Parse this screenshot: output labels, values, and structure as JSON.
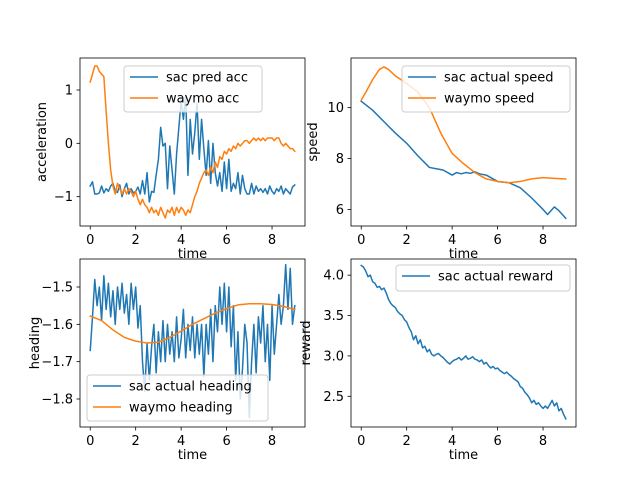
{
  "figure": {
    "colors": {
      "blue": "#1f77b4",
      "orange": "#ff7f0e"
    }
  },
  "chart_data": [
    {
      "type": "line",
      "xlabel": "time",
      "ylabel": "acceleration",
      "xlim": [
        -0.45,
        9.45
      ],
      "ylim": [
        -1.55,
        1.6
      ],
      "xticks": [
        0,
        2,
        4,
        6,
        8
      ],
      "yticks": [
        -1,
        0,
        1
      ],
      "legend": "upper center",
      "grid": false,
      "series": [
        {
          "name": "sac pred acc",
          "color": "#1f77b4",
          "x": [
            0,
            0.1,
            0.2,
            0.3,
            0.4,
            0.5,
            0.6,
            0.7,
            0.8,
            0.9,
            1.0,
            1.1,
            1.2,
            1.3,
            1.4,
            1.5,
            1.6,
            1.7,
            1.8,
            1.9,
            2.0,
            2.1,
            2.2,
            2.3,
            2.4,
            2.5,
            2.6,
            2.7,
            2.8,
            2.9,
            3.0,
            3.1,
            3.2,
            3.3,
            3.4,
            3.5,
            3.6,
            3.7,
            3.8,
            3.9,
            4.0,
            4.1,
            4.2,
            4.3,
            4.4,
            4.5,
            4.6,
            4.7,
            4.8,
            4.9,
            5.0,
            5.1,
            5.2,
            5.3,
            5.4,
            5.5,
            5.6,
            5.7,
            5.8,
            5.9,
            6.0,
            6.1,
            6.2,
            6.3,
            6.4,
            6.5,
            6.6,
            6.7,
            6.8,
            6.9,
            7.0,
            7.1,
            7.2,
            7.3,
            7.4,
            7.5,
            7.6,
            7.7,
            7.8,
            7.9,
            8.0,
            8.1,
            8.2,
            8.3,
            8.4,
            8.5,
            8.6,
            8.7,
            8.8,
            8.9,
            9.0
          ],
          "y": [
            -0.8,
            -0.72,
            -0.95,
            -0.95,
            -0.93,
            -0.8,
            -0.93,
            -0.85,
            -0.9,
            -0.8,
            -0.75,
            -0.9,
            -0.92,
            -0.78,
            -1.0,
            -0.85,
            -0.75,
            -0.95,
            -0.85,
            -0.93,
            -0.9,
            -0.82,
            -0.95,
            -0.7,
            -0.95,
            -0.55,
            -1.1,
            -0.9,
            -0.92,
            -0.6,
            -0.3,
            0.3,
            -0.05,
            0.0,
            -0.85,
            -0.05,
            -0.5,
            -0.95,
            -0.2,
            0.3,
            0.8,
            0.45,
            0.9,
            -0.6,
            0.45,
            -0.2,
            0.2,
            0.75,
            -0.3,
            0.45,
            -0.1,
            -0.6,
            0.05,
            -0.75,
            0.0,
            -0.55,
            -0.8,
            -0.55,
            -0.9,
            -0.35,
            -0.85,
            -0.3,
            -0.9,
            -0.75,
            -0.85,
            -0.55,
            -0.95,
            -0.6,
            -0.85,
            -0.95,
            -0.95,
            -0.75,
            -0.95,
            -0.8,
            -0.9,
            -0.85,
            -0.92,
            -0.85,
            -0.95,
            -0.8,
            -0.9,
            -0.95,
            -0.85,
            -0.9,
            -0.8,
            -0.95,
            -0.85,
            -0.9,
            -0.95,
            -0.82,
            -0.78
          ]
        },
        {
          "name": "waymo acc",
          "color": "#ff7f0e",
          "x": [
            0,
            0.1,
            0.2,
            0.3,
            0.4,
            0.5,
            0.6,
            0.7,
            0.8,
            0.9,
            1.0,
            1.1,
            1.2,
            1.3,
            1.4,
            1.5,
            1.6,
            1.7,
            1.8,
            1.9,
            2.0,
            2.1,
            2.2,
            2.3,
            2.4,
            2.5,
            2.6,
            2.7,
            2.8,
            2.9,
            3.0,
            3.1,
            3.2,
            3.3,
            3.4,
            3.5,
            3.6,
            3.7,
            3.8,
            3.9,
            4.0,
            4.1,
            4.2,
            4.3,
            4.4,
            4.5,
            4.6,
            4.7,
            4.8,
            4.9,
            5.0,
            5.1,
            5.2,
            5.3,
            5.4,
            5.5,
            5.6,
            5.7,
            5.8,
            5.9,
            6.0,
            6.1,
            6.2,
            6.3,
            6.4,
            6.5,
            6.6,
            6.7,
            6.8,
            6.9,
            7.0,
            7.1,
            7.2,
            7.3,
            7.4,
            7.5,
            7.6,
            7.7,
            7.8,
            7.9,
            8.0,
            8.1,
            8.2,
            8.3,
            8.4,
            8.5,
            8.6,
            8.7,
            8.8,
            8.9,
            9.0
          ],
          "y": [
            1.15,
            1.3,
            1.45,
            1.45,
            1.35,
            1.3,
            1.25,
            0.6,
            0.0,
            -0.5,
            -0.8,
            -0.95,
            -0.75,
            -0.85,
            -0.95,
            -0.85,
            -0.95,
            -0.85,
            -0.9,
            -1.0,
            -0.9,
            -1.05,
            -1.15,
            -1.05,
            -1.15,
            -1.2,
            -1.3,
            -1.2,
            -1.3,
            -1.25,
            -1.35,
            -1.2,
            -1.3,
            -1.4,
            -1.25,
            -1.3,
            -1.2,
            -1.35,
            -1.2,
            -1.3,
            -1.2,
            -1.25,
            -1.35,
            -1.25,
            -1.3,
            -1.15,
            -1.0,
            -0.9,
            -0.75,
            -0.65,
            -0.55,
            -0.5,
            -0.6,
            -0.45,
            -0.55,
            -0.35,
            -0.45,
            -0.25,
            -0.3,
            -0.15,
            -0.2,
            -0.1,
            -0.15,
            -0.05,
            -0.1,
            0.0,
            -0.05,
            0.0,
            0.05,
            0.05,
            0.0,
            0.05,
            0.1,
            0.05,
            0.1,
            0.05,
            0.1,
            0.05,
            0.1,
            0.1,
            0.1,
            0.05,
            0.1,
            0.1,
            0.0,
            -0.05,
            0.0,
            -0.05,
            -0.1,
            -0.1,
            -0.15
          ]
        }
      ]
    },
    {
      "type": "line",
      "xlabel": "time",
      "ylabel": "speed",
      "xlim": [
        -0.45,
        9.45
      ],
      "ylim": [
        5.35,
        11.95
      ],
      "xticks": [
        0,
        2,
        4,
        6,
        8
      ],
      "yticks": [
        6,
        8,
        10
      ],
      "legend": "upper right",
      "grid": false,
      "series": [
        {
          "name": "sac actual speed",
          "color": "#1f77b4",
          "x": [
            0,
            0.5,
            1.0,
            1.5,
            2.0,
            2.5,
            3.0,
            3.3,
            3.6,
            3.9,
            4.0,
            4.2,
            4.4,
            4.6,
            4.8,
            5.0,
            5.2,
            5.5,
            6.0,
            6.5,
            7.0,
            7.5,
            8.0,
            8.2,
            8.5,
            8.7,
            9.0
          ],
          "y": [
            10.25,
            9.9,
            9.45,
            9.0,
            8.6,
            8.1,
            7.65,
            7.6,
            7.55,
            7.4,
            7.35,
            7.45,
            7.4,
            7.45,
            7.42,
            7.48,
            7.4,
            7.35,
            7.1,
            7.05,
            6.85,
            6.45,
            6.0,
            5.8,
            6.1,
            5.95,
            5.65
          ]
        },
        {
          "name": "waymo speed",
          "color": "#ff7f0e",
          "x": [
            0,
            0.2,
            0.5,
            0.8,
            1.0,
            1.2,
            1.5,
            2.0,
            2.5,
            3.0,
            3.5,
            4.0,
            4.5,
            5.0,
            5.5,
            6.0,
            6.5,
            7.0,
            7.5,
            8.0,
            8.5,
            9.0
          ],
          "y": [
            10.3,
            10.6,
            11.1,
            11.5,
            11.6,
            11.5,
            11.25,
            10.95,
            10.6,
            10.0,
            9.0,
            8.2,
            7.8,
            7.45,
            7.2,
            7.1,
            7.05,
            7.1,
            7.2,
            7.25,
            7.22,
            7.2
          ]
        }
      ]
    },
    {
      "type": "line",
      "xlabel": "time",
      "ylabel": "heading",
      "xlim": [
        -0.45,
        9.45
      ],
      "ylim": [
        -1.875,
        -1.425
      ],
      "xticks": [
        0,
        2,
        4,
        6,
        8
      ],
      "yticks": [
        -1.8,
        -1.7,
        -1.6,
        -1.5
      ],
      "legend": "lower left",
      "grid": false,
      "series": [
        {
          "name": "sac actual heading",
          "color": "#1f77b4",
          "x": [
            0,
            0.1,
            0.2,
            0.3,
            0.4,
            0.5,
            0.6,
            0.7,
            0.8,
            0.9,
            1.0,
            1.1,
            1.2,
            1.3,
            1.4,
            1.5,
            1.6,
            1.7,
            1.8,
            1.9,
            2.0,
            2.1,
            2.2,
            2.3,
            2.4,
            2.5,
            2.6,
            2.7,
            2.8,
            2.9,
            3.0,
            3.1,
            3.2,
            3.3,
            3.4,
            3.5,
            3.6,
            3.7,
            3.8,
            3.9,
            4.0,
            4.1,
            4.2,
            4.3,
            4.4,
            4.5,
            4.6,
            4.7,
            4.8,
            4.9,
            5.0,
            5.1,
            5.2,
            5.3,
            5.4,
            5.5,
            5.6,
            5.7,
            5.8,
            5.9,
            6.0,
            6.1,
            6.2,
            6.3,
            6.4,
            6.5,
            6.6,
            6.7,
            6.8,
            6.9,
            7.0,
            7.1,
            7.2,
            7.3,
            7.4,
            7.5,
            7.6,
            7.7,
            7.8,
            7.9,
            8.0,
            8.1,
            8.2,
            8.3,
            8.4,
            8.5,
            8.6,
            8.7,
            8.8,
            8.9,
            9.0
          ],
          "y": [
            -1.67,
            -1.58,
            -1.48,
            -1.55,
            -1.5,
            -1.59,
            -1.47,
            -1.56,
            -1.49,
            -1.58,
            -1.51,
            -1.6,
            -1.5,
            -1.56,
            -1.49,
            -1.57,
            -1.52,
            -1.6,
            -1.49,
            -1.56,
            -1.5,
            -1.61,
            -1.55,
            -1.7,
            -1.78,
            -1.65,
            -1.75,
            -1.66,
            -1.6,
            -1.73,
            -1.62,
            -1.7,
            -1.59,
            -1.7,
            -1.6,
            -1.68,
            -1.62,
            -1.7,
            -1.58,
            -1.69,
            -1.64,
            -1.56,
            -1.69,
            -1.6,
            -1.67,
            -1.58,
            -1.69,
            -1.6,
            -1.68,
            -1.6,
            -1.74,
            -1.6,
            -1.68,
            -1.56,
            -1.7,
            -1.55,
            -1.62,
            -1.5,
            -1.6,
            -1.49,
            -1.62,
            -1.5,
            -1.66,
            -1.55,
            -1.75,
            -1.62,
            -1.8,
            -1.72,
            -1.6,
            -1.65,
            -1.85,
            -1.7,
            -1.6,
            -1.73,
            -1.58,
            -1.65,
            -1.55,
            -1.7,
            -1.6,
            -1.75,
            -1.55,
            -1.68,
            -1.6,
            -1.52,
            -1.6,
            -1.55,
            -1.44,
            -1.56,
            -1.45,
            -1.6,
            -1.55
          ]
        },
        {
          "name": "waymo heading",
          "color": "#ff7f0e",
          "x": [
            0,
            0.5,
            1.0,
            1.5,
            2.0,
            2.5,
            3.0,
            3.5,
            4.0,
            4.5,
            5.0,
            5.5,
            6.0,
            6.5,
            7.0,
            7.5,
            8.0,
            8.5,
            9.0
          ],
          "y": [
            -1.578,
            -1.59,
            -1.615,
            -1.635,
            -1.645,
            -1.65,
            -1.648,
            -1.635,
            -1.618,
            -1.6,
            -1.585,
            -1.57,
            -1.558,
            -1.548,
            -1.545,
            -1.545,
            -1.547,
            -1.552,
            -1.56
          ]
        }
      ]
    },
    {
      "type": "line",
      "xlabel": "time",
      "ylabel": "reward",
      "xlim": [
        -0.45,
        9.45
      ],
      "ylim": [
        2.12,
        4.2
      ],
      "xticks": [
        0,
        2,
        4,
        6,
        8
      ],
      "yticks": [
        2.5,
        3.0,
        3.5,
        4.0
      ],
      "legend": "upper right",
      "grid": false,
      "series": [
        {
          "name": "sac actual reward",
          "color": "#1f77b4",
          "x": [
            0,
            0.1,
            0.2,
            0.3,
            0.4,
            0.5,
            0.6,
            0.7,
            0.8,
            0.9,
            1.0,
            1.1,
            1.2,
            1.3,
            1.4,
            1.5,
            1.6,
            1.7,
            1.8,
            1.9,
            2.0,
            2.1,
            2.2,
            2.3,
            2.4,
            2.5,
            2.6,
            2.7,
            2.8,
            2.9,
            3.0,
            3.1,
            3.2,
            3.3,
            3.4,
            3.5,
            3.6,
            3.7,
            3.8,
            3.9,
            4.0,
            4.1,
            4.2,
            4.3,
            4.4,
            4.5,
            4.6,
            4.7,
            4.8,
            4.9,
            5.0,
            5.1,
            5.2,
            5.3,
            5.4,
            5.5,
            5.6,
            5.7,
            5.8,
            5.9,
            6.0,
            6.1,
            6.2,
            6.3,
            6.4,
            6.5,
            6.6,
            6.7,
            6.8,
            6.9,
            7.0,
            7.1,
            7.2,
            7.3,
            7.4,
            7.5,
            7.6,
            7.7,
            7.8,
            7.9,
            8.0,
            8.1,
            8.2,
            8.3,
            8.4,
            8.5,
            8.6,
            8.7,
            8.8,
            8.9,
            9.0
          ],
          "y": [
            4.12,
            4.1,
            4.05,
            3.98,
            4.0,
            3.92,
            3.9,
            3.85,
            3.86,
            3.82,
            3.84,
            3.78,
            3.7,
            3.65,
            3.62,
            3.6,
            3.55,
            3.52,
            3.5,
            3.45,
            3.42,
            3.35,
            3.3,
            3.2,
            3.25,
            3.15,
            3.2,
            3.1,
            3.12,
            3.05,
            3.08,
            3.02,
            3.0,
            3.02,
            3.03,
            3.0,
            2.98,
            2.95,
            2.92,
            2.9,
            2.93,
            2.95,
            2.96,
            2.98,
            2.95,
            2.97,
            3.0,
            2.96,
            2.97,
            2.99,
            2.96,
            2.95,
            2.93,
            2.95,
            2.9,
            2.92,
            2.88,
            2.85,
            2.87,
            2.84,
            2.85,
            2.82,
            2.8,
            2.78,
            2.8,
            2.77,
            2.75,
            2.72,
            2.7,
            2.68,
            2.62,
            2.6,
            2.55,
            2.52,
            2.48,
            2.42,
            2.45,
            2.4,
            2.42,
            2.38,
            2.35,
            2.38,
            2.35,
            2.4,
            2.45,
            2.38,
            2.42,
            2.32,
            2.35,
            2.28,
            2.22
          ]
        }
      ]
    }
  ]
}
